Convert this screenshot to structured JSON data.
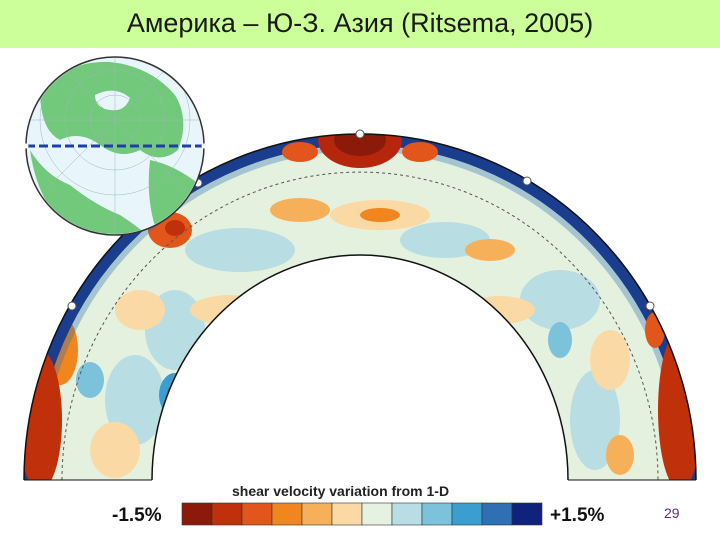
{
  "slide": {
    "title": "Америка – Ю-З. Азия (Ritsema, 2005)",
    "page_number": "29"
  },
  "colorbar": {
    "label": "shear velocity variation from 1-D",
    "min_label": "-1.5%",
    "max_label": "+1.5%",
    "colors": [
      "#8b1a0a",
      "#c0300a",
      "#e3561b",
      "#f1861f",
      "#f6b05a",
      "#fbd9a4",
      "#e5f2e2",
      "#b8dde3",
      "#7cc2da",
      "#3a9fd0",
      "#2f6fb3",
      "#10237a"
    ]
  },
  "section": {
    "markers": 6,
    "colors": {
      "fast_blue": "#10237a",
      "slow_red": "#b5260d",
      "mantle_bg": "#e4f1df"
    }
  },
  "globe": {
    "colors": {
      "ocean": "#e8f6fb",
      "land": "#72c97b",
      "section_line": "#1f3fa8"
    }
  }
}
